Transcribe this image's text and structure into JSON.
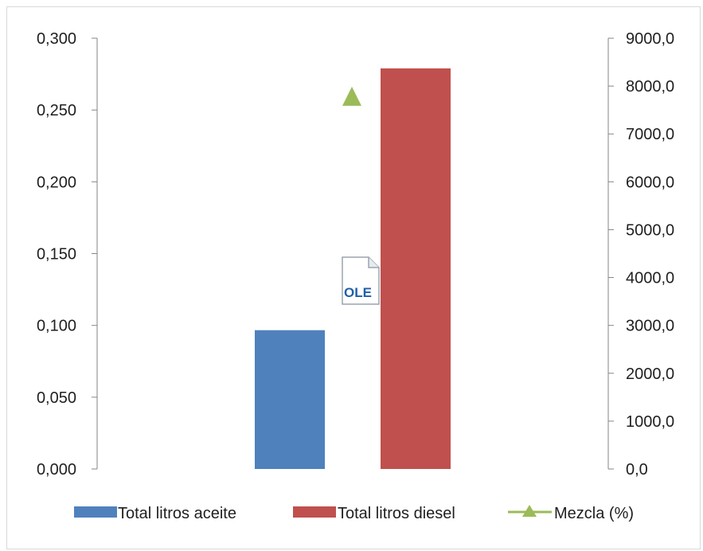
{
  "chart_data": {
    "type": "bar",
    "categories": [
      ""
    ],
    "series": [
      {
        "name": "Total litros aceite",
        "axis": "right",
        "values": [
          2900
        ],
        "color": "#4f81bd",
        "kind": "bar"
      },
      {
        "name": "Total litros diesel",
        "axis": "right",
        "values": [
          8370
        ],
        "color": "#c0504d",
        "kind": "bar"
      },
      {
        "name": "Mezcla (%)",
        "axis": "left",
        "values": [
          0.259
        ],
        "color": "#9bbb59",
        "kind": "line-marker"
      }
    ],
    "left_axis": {
      "ylim": [
        0,
        0.3
      ],
      "ticks": [
        0,
        0.05,
        0.1,
        0.15,
        0.2,
        0.25,
        0.3
      ],
      "tick_labels": [
        "0,000",
        "0,050",
        "0,100",
        "0,150",
        "0,200",
        "0,250",
        "0,300"
      ]
    },
    "right_axis": {
      "ylim": [
        0,
        9000
      ],
      "ticks": [
        0,
        1000,
        2000,
        3000,
        4000,
        5000,
        6000,
        7000,
        8000,
        9000
      ],
      "tick_labels": [
        "0,0",
        "1000,0",
        "2000,0",
        "3000,0",
        "4000,0",
        "5000,0",
        "6000,0",
        "7000,0",
        "8000,0",
        "9000,0"
      ]
    },
    "grid": false,
    "legend": "bottom",
    "embedded_object_label": "OLE"
  }
}
